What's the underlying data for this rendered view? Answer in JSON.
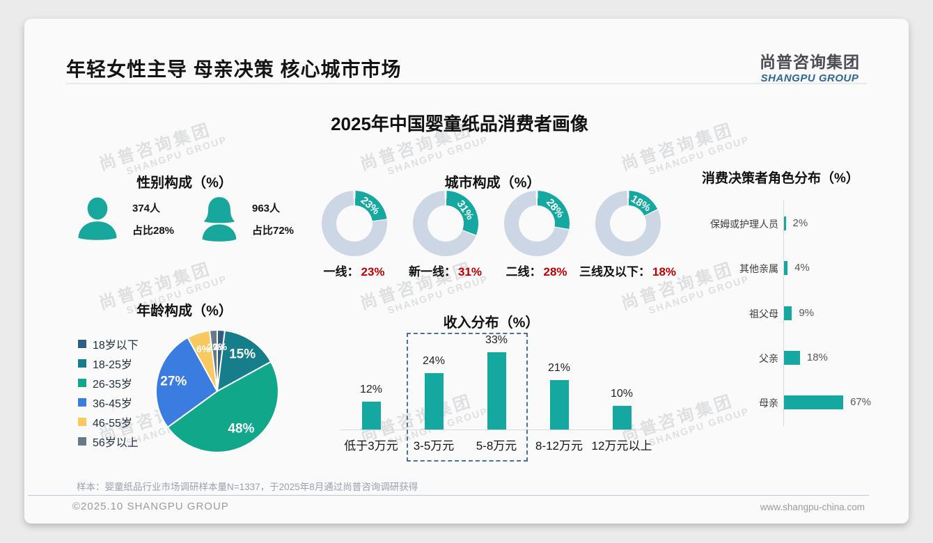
{
  "page": {
    "title": "年轻女性主导 母亲决策 核心城市市场",
    "main_title": "2025年中国婴童纸品消费者画像",
    "note": "样本：婴童纸品行业市场调研样本量N=1337，于2025年8月通过尚普咨询调研获得",
    "copyright": "©2025.10 SHANGPU GROUP",
    "website": "www.shangpu-china.com"
  },
  "logo": {
    "cn": "尚普咨询集团",
    "en": "SHANGPU GROUP"
  },
  "watermark": {
    "cn": "尚普咨询集团",
    "en": "SHANGPU GROUP"
  },
  "colors": {
    "teal": "#15a8a1",
    "donut_rest": "#ccd6e4",
    "red": "#c00000",
    "logo_blue": "#2e6699",
    "highlight_box": "#4a709d"
  },
  "chart_data": [
    {
      "name": "gender",
      "type": "pictogram",
      "title": "性别构成（%）",
      "items": [
        {
          "icon": "male",
          "count": "374人",
          "share": "占比28%"
        },
        {
          "icon": "female",
          "count": "963人",
          "share": "占比72%"
        }
      ]
    },
    {
      "name": "city",
      "type": "donut",
      "title": "城市构成（%）",
      "items": [
        {
          "label": "一线",
          "value": 23
        },
        {
          "label": "新一线",
          "value": 31
        },
        {
          "label": "二线",
          "value": 28
        },
        {
          "label": "三线及以下",
          "value": 18
        }
      ]
    },
    {
      "name": "decision",
      "type": "bar",
      "title": "消费决策者角色分布（%）",
      "orientation": "horizontal",
      "categories": [
        "保姆或护理人员",
        "其他亲属",
        "祖父母",
        "父亲",
        "母亲"
      ],
      "values": [
        2,
        4,
        9,
        18,
        67
      ]
    },
    {
      "name": "age",
      "type": "pie",
      "title": "年龄构成（%）",
      "categories": [
        "18岁以下",
        "18-25岁",
        "26-35岁",
        "36-45岁",
        "46-55岁",
        "56岁以上"
      ],
      "values": [
        2,
        15,
        48,
        27,
        6,
        2
      ],
      "colors": [
        "#2e5f80",
        "#157e8a",
        "#10a78b",
        "#3b7ce0",
        "#f7c95f",
        "#68798a"
      ],
      "legend_position": "left",
      "start_angle": "top",
      "direction": "clockwise"
    },
    {
      "name": "income",
      "type": "bar",
      "title": "收入分布（%）",
      "orientation": "vertical",
      "categories": [
        "低于3万元",
        "3-5万元",
        "5-8万元",
        "8-12万元",
        "12万元以上"
      ],
      "values": [
        12,
        24,
        33,
        21,
        10
      ],
      "highlight": {
        "categories": [
          "3-5万元",
          "5-8万元"
        ],
        "style": "dashed-box"
      }
    }
  ]
}
